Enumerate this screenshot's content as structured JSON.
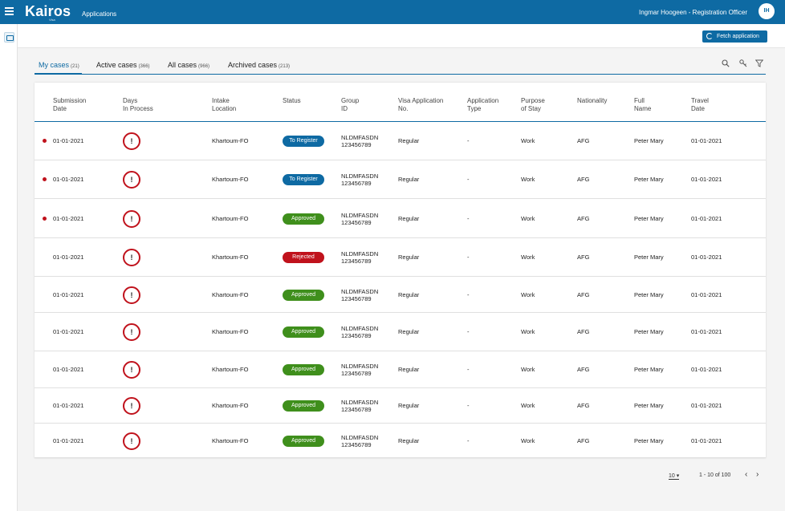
{
  "topbar": {
    "logo": "Kairos",
    "logo_sub": "Visa",
    "app_title": "Applications",
    "user": "Ingmar Hoogeen - Registration Officer",
    "avatar": "IH"
  },
  "actions": {
    "fetch": "Fetch application"
  },
  "tabs": [
    {
      "label": "My cases",
      "count": "(21)"
    },
    {
      "label": "Active cases",
      "count": "(366)"
    },
    {
      "label": "All cases",
      "count": "(966)"
    },
    {
      "label": "Archived cases",
      "count": "(213)"
    }
  ],
  "tools": [
    "search-icon",
    "key-icon",
    "filter-icon"
  ],
  "columns": [
    "Submission\nDate",
    "Days\nIn Process",
    "Intake\nLocation",
    "Status",
    "Group\nID",
    "Visa Application\nNo.",
    "Application\nType",
    "Purpose\nof Stay",
    "Nationality",
    "Full\nName",
    "Travel\nDate"
  ],
  "rows": [
    {
      "flag": true,
      "date": "01-01-2021",
      "warn": "!",
      "location": "Khartoum-FO",
      "status": "To Register",
      "group": "NLDMFASDN\n123456789",
      "visa": "Regular",
      "type": "-",
      "purpose": "Work",
      "nationality": "AFG",
      "name": "Peter Mary",
      "travel": "01-01-2021"
    },
    {
      "flag": true,
      "date": "01-01-2021",
      "warn": "!",
      "location": "Khartoum-FO",
      "status": "To Register",
      "group": "NLDMFASDN\n123456789",
      "visa": "Regular",
      "type": "-",
      "purpose": "Work",
      "nationality": "AFG",
      "name": "Peter Mary",
      "travel": "01-01-2021"
    },
    {
      "flag": true,
      "date": "01-01-2021",
      "warn": "!",
      "location": "Khartoum-FO",
      "status": "Approved",
      "group": "NLDMFASDN\n123456789",
      "visa": "Regular",
      "type": "-",
      "purpose": "Work",
      "nationality": "AFG",
      "name": "Peter Mary",
      "travel": "01-01-2021"
    },
    {
      "flag": false,
      "date": "01-01-2021",
      "warn": "!",
      "location": "Khartoum-FO",
      "status": "Rejected",
      "group": "NLDMFASDN\n123456789",
      "visa": "Regular",
      "type": "-",
      "purpose": "Work",
      "nationality": "AFG",
      "name": "Peter Mary",
      "travel": "01-01-2021"
    },
    {
      "flag": false,
      "date": "01-01-2021",
      "warn": "!",
      "location": "Khartoum-FO",
      "status": "Approved",
      "group": "NLDMFASDN\n123456789",
      "visa": "Regular",
      "type": "-",
      "purpose": "Work",
      "nationality": "AFG",
      "name": "Peter Mary",
      "travel": "01-01-2021"
    },
    {
      "flag": false,
      "date": "01-01-2021",
      "warn": "!",
      "location": "Khartoum-FO",
      "status": "Approved",
      "group": "NLDMFASDN\n123456789",
      "visa": "Regular",
      "type": "-",
      "purpose": "Work",
      "nationality": "AFG",
      "name": "Peter Mary",
      "travel": "01-01-2021"
    },
    {
      "flag": false,
      "date": "01-01-2021",
      "warn": "!",
      "location": "Khartoum-FO",
      "status": "Approved",
      "group": "NLDMFASDN\n123456789",
      "visa": "Regular",
      "type": "-",
      "purpose": "Work",
      "nationality": "AFG",
      "name": "Peter Mary",
      "travel": "01-01-2021"
    },
    {
      "flag": false,
      "date": "01-01-2021",
      "warn": "!",
      "location": "Khartoum-FO",
      "status": "Approved",
      "group": "NLDMFASDN\n123456789",
      "visa": "Regular",
      "type": "-",
      "purpose": "Work",
      "nationality": "AFG",
      "name": "Peter Mary",
      "travel": "01-01-2021"
    },
    {
      "flag": false,
      "date": "01-01-2021",
      "warn": "!",
      "location": "Khartoum-FO",
      "status": "Approved",
      "group": "NLDMFASDN\n123456789",
      "visa": "Regular",
      "type": "-",
      "purpose": "Work",
      "nationality": "AFG",
      "name": "Peter Mary",
      "travel": "01-01-2021"
    }
  ],
  "status_colors": {
    "To Register": "#0e6aa3",
    "Approved": "#3f8f1c",
    "Rejected": "#c0121c"
  },
  "pager": {
    "page_size": "10",
    "range": "1 - 10 of 100",
    "prev": "‹",
    "next": "›"
  }
}
